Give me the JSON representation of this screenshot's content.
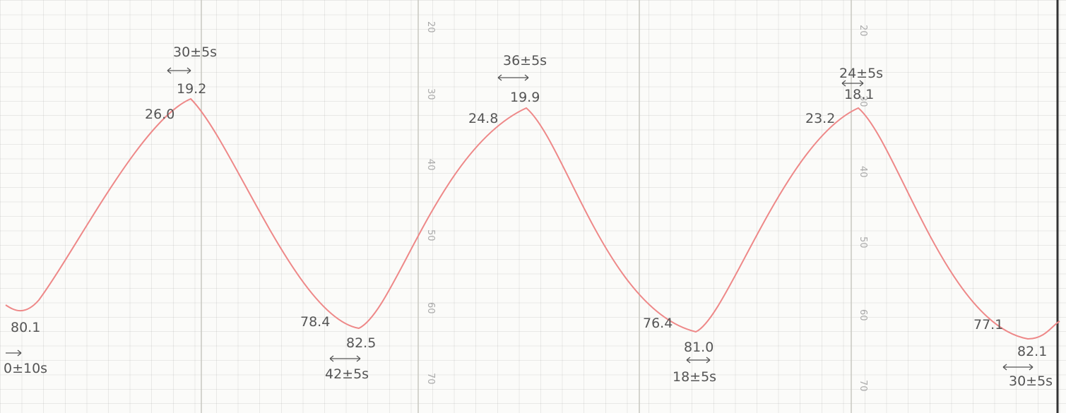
{
  "scale_labels": [
    "20",
    "30",
    "40",
    "50",
    "60",
    "70"
  ],
  "annotations": [
    "30±5s",
    "19.2",
    "26.0",
    "80.1",
    "0±10s",
    "78.4",
    "82.5",
    "42±5s",
    "36±5s",
    "19.9",
    "24.8",
    "76.4",
    "81.0",
    "18±5s",
    "24±5s",
    "18.1",
    "23.2",
    "77.1",
    "82.1",
    "30±5s"
  ]
}
